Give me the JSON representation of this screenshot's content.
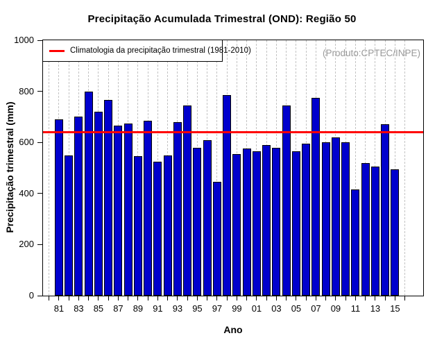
{
  "chart_data": {
    "type": "bar",
    "title": "Precipitação Acumulada Trimestral (OND): Região 50",
    "xlabel": "Ano",
    "ylabel": "Precipitação trimestral (mm)",
    "annotation": "(Produto:CPTEC/INPE)",
    "ylim": [
      0,
      1000
    ],
    "yticks": [
      0,
      200,
      400,
      600,
      800,
      1000
    ],
    "xlim_years": [
      1980,
      2016
    ],
    "x_labeled_every": 2,
    "categories": [
      "81",
      "82",
      "83",
      "84",
      "85",
      "86",
      "87",
      "88",
      "89",
      "90",
      "91",
      "92",
      "93",
      "94",
      "95",
      "96",
      "97",
      "98",
      "99",
      "00",
      "01",
      "02",
      "03",
      "04",
      "05",
      "06",
      "07",
      "08",
      "09",
      "10",
      "11",
      "12",
      "13",
      "14",
      "15"
    ],
    "values": [
      690,
      550,
      700,
      800,
      720,
      765,
      665,
      675,
      545,
      685,
      525,
      550,
      680,
      745,
      580,
      610,
      445,
      785,
      555,
      575,
      565,
      590,
      580,
      745,
      565,
      595,
      775,
      600,
      620,
      600,
      415,
      520,
      505,
      670,
      495
    ],
    "climatology": {
      "label": "Climatologia da precipitação trimestral (1981-2010)",
      "value": 640,
      "color": "#ff0000"
    },
    "colors": {
      "bar_fill": "#0000cd",
      "bar_border": "#000000",
      "grid": "#c3c3c3",
      "annotation": "#999999",
      "axis": "#000000"
    },
    "grid": "vertical-dashed",
    "legend_position": "top-left"
  }
}
